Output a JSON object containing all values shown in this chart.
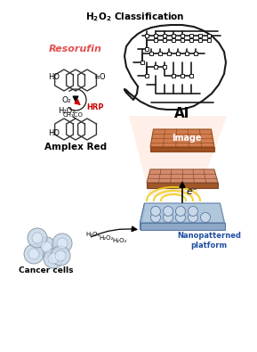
{
  "title": "",
  "bg_color": "#ffffff",
  "h2o2_text": "H₂O₂ Classification",
  "ai_text": "AI",
  "resorufin_text": "Resorufin",
  "resorufin_color": "#e05050",
  "amplex_red_text": "Amplex Red",
  "hrp_text": "HRP",
  "hrp_color": "#cc0000",
  "image_text": "Image",
  "nano_text": "Nanopatterned\nplatform",
  "cancer_text": "Cancer cells",
  "h2o2_labels": [
    "H₂O₂",
    "H₂O₂",
    "H₂O₂"
  ],
  "o2_text": "O₂",
  "h2o2_reaction_text": "H₂O₂",
  "electron_text": "e⁻",
  "image_plate_color": "#c97840",
  "image_plate_edge": "#8b5520",
  "sensor_plate_color": "#c07850",
  "sensor_plate_edge": "#7a4a20",
  "nano_plate_color": "#b0c8e0",
  "nano_plate_edge": "#6080a0",
  "cone_color": "#ffccaa",
  "cone_alpha": 0.4,
  "brain_color": "#1a1a1a",
  "circuit_color": "#1a1a1a",
  "cell_color": "#c8d8e8",
  "cell_edge": "#8090a0",
  "yellow_wave_color": "#f0d020",
  "figsize": [
    2.89,
    3.95
  ],
  "dpi": 100
}
